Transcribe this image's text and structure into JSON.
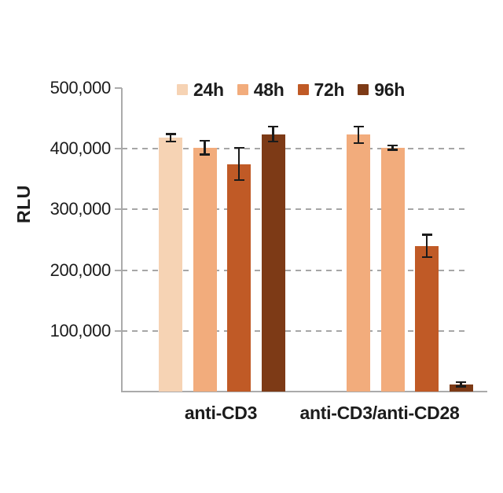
{
  "chart_data": {
    "type": "bar",
    "title": "",
    "xlabel": "",
    "ylabel": "RLU",
    "categories": [
      "anti-CD3",
      "anti-CD3/anti-CD28"
    ],
    "series": [
      {
        "name": "24h",
        "color": "#F6D3B4",
        "values": [
          418000,
          423000
        ],
        "errors": [
          8000,
          15000
        ],
        "bar_colors": [
          "#F6D3B4",
          "#F2AC7C"
        ]
      },
      {
        "name": "48h",
        "color": "#F2AC7C",
        "values": [
          402000,
          402000
        ],
        "errors": [
          13000,
          5000
        ],
        "bar_colors": [
          "#F2AC7C",
          "#F2AC7C"
        ]
      },
      {
        "name": "72h",
        "color": "#C05A26",
        "values": [
          375000,
          240000
        ],
        "errors": [
          28000,
          20000
        ],
        "bar_colors": [
          "#C05A26",
          "#C05A26"
        ]
      },
      {
        "name": "96h",
        "color": "#7D3A16",
        "values": [
          424000,
          12000
        ],
        "errors": [
          14000,
          5000
        ],
        "bar_colors": [
          "#7D3A16",
          "#7D3A16"
        ]
      }
    ],
    "ylim": [
      0,
      500000
    ],
    "yticks": [
      100000,
      200000,
      300000,
      400000,
      500000
    ],
    "ytick_labels": [
      "100,000",
      "200,000",
      "300,000",
      "400,000",
      "500,000"
    ],
    "grid": "horizontal dashed lines at 100,000–400,000",
    "legend_position": "top",
    "error_bars": "symmetric, black caps",
    "style_colors": {
      "axis": "#ababab",
      "gridline": "#a6a6a6",
      "error_bar": "#1b1b1b",
      "text": "#1c1c1c",
      "background": "#ffffff"
    }
  }
}
